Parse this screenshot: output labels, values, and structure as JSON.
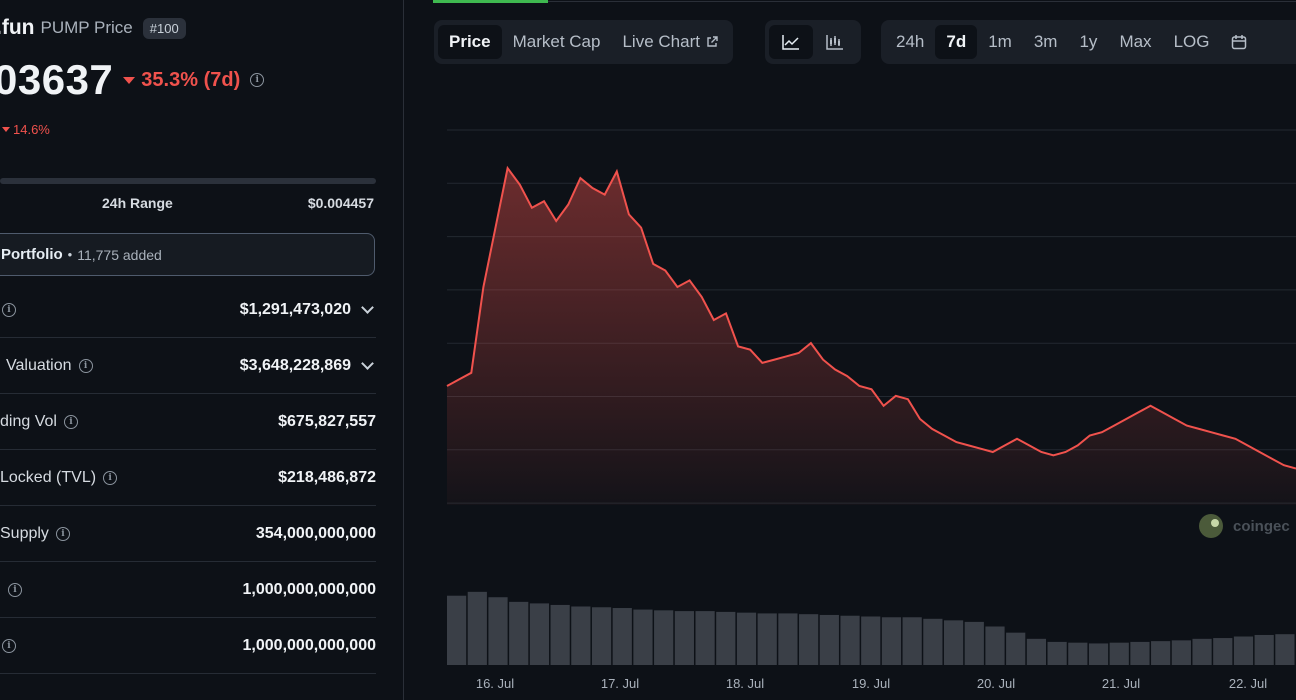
{
  "token": {
    "name": ".fun",
    "subtitle": "PUMP Price",
    "rank": "#100",
    "price": "03637",
    "change_7d": "35.3% (7d)",
    "change_24h": "14.6%"
  },
  "range": {
    "label": "24h Range",
    "high": "$0.004457"
  },
  "portfolio": {
    "label": "Portfolio",
    "dot": "•",
    "count": "11,775 added"
  },
  "stats": [
    {
      "label": "",
      "value": "$1,291,473,020",
      "chevron": true
    },
    {
      "label": "Valuation",
      "value": "$3,648,228,869",
      "chevron": true
    },
    {
      "label": "ding Vol",
      "value": "$675,827,557",
      "chevron": false
    },
    {
      "label": "Locked (TVL)",
      "value": "$218,486,872",
      "chevron": false
    },
    {
      "label": "Supply",
      "value": "354,000,000,000",
      "chevron": false
    },
    {
      "label": "",
      "value": "1,000,000,000,000",
      "chevron": false
    },
    {
      "label": "",
      "value": "1,000,000,000,000",
      "chevron": false
    }
  ],
  "tabs": {
    "price": "Price",
    "market_cap": "Market Cap",
    "live_chart": "Live Chart"
  },
  "view_icons": {
    "line": "line-chart-icon",
    "candle": "candlestick-icon"
  },
  "ranges": {
    "r24h": "24h",
    "r7d": "7d",
    "r1m": "1m",
    "r3m": "3m",
    "r1y": "1y",
    "max": "Max",
    "log": "LOG",
    "calendar": "calendar-icon"
  },
  "watermark": "coingec",
  "colors": {
    "price_line": "#f0524d",
    "negative": "#f0524d",
    "active_tab_underline": "#3fb950",
    "volume_bar": "#3a3f47"
  },
  "chart_data": {
    "type": "area",
    "x": [
      "16. Jul",
      "17. Jul",
      "18. Jul",
      "19. Jul",
      "20. Jul",
      "21. Jul",
      "22. Jul"
    ],
    "xlabel": "",
    "ylabel": "",
    "series_price": [
      0.3,
      0.32,
      0.34,
      0.6,
      0.78,
      0.96,
      0.91,
      0.84,
      0.86,
      0.8,
      0.85,
      0.93,
      0.9,
      0.88,
      0.95,
      0.82,
      0.78,
      0.67,
      0.65,
      0.6,
      0.62,
      0.57,
      0.5,
      0.52,
      0.42,
      0.41,
      0.37,
      0.38,
      0.39,
      0.4,
      0.43,
      0.38,
      0.35,
      0.33,
      0.3,
      0.29,
      0.24,
      0.27,
      0.26,
      0.2,
      0.17,
      0.15,
      0.13,
      0.12,
      0.11,
      0.1,
      0.12,
      0.14,
      0.12,
      0.1,
      0.09,
      0.1,
      0.12,
      0.15,
      0.16,
      0.18,
      0.2,
      0.22,
      0.24,
      0.22,
      0.2,
      0.18,
      0.17,
      0.16,
      0.15,
      0.14,
      0.12,
      0.1,
      0.08,
      0.06,
      0.05
    ],
    "series_volume": [
      0.9,
      0.95,
      0.88,
      0.82,
      0.8,
      0.78,
      0.76,
      0.75,
      0.74,
      0.72,
      0.71,
      0.7,
      0.7,
      0.69,
      0.68,
      0.67,
      0.67,
      0.66,
      0.65,
      0.64,
      0.63,
      0.62,
      0.62,
      0.6,
      0.58,
      0.56,
      0.5,
      0.42,
      0.34,
      0.3,
      0.29,
      0.28,
      0.29,
      0.3,
      0.31,
      0.32,
      0.34,
      0.35,
      0.37,
      0.39,
      0.4
    ],
    "grid": true,
    "legend": "none"
  }
}
